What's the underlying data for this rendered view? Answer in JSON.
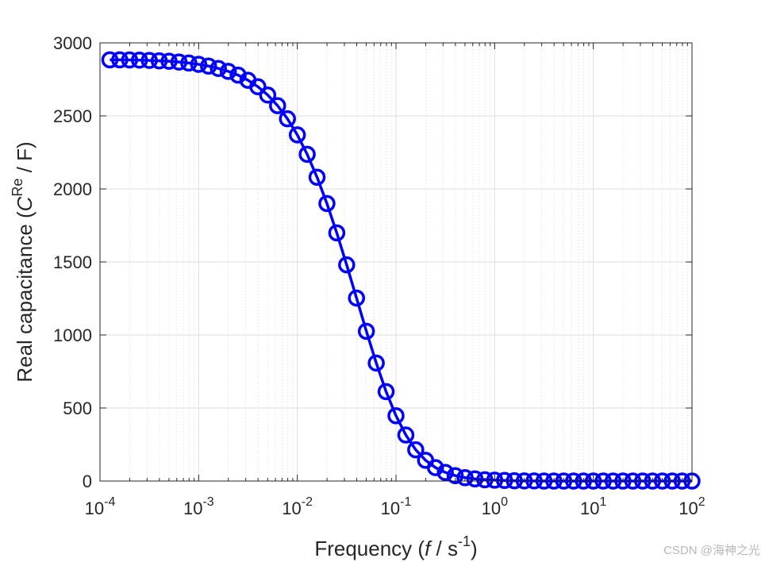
{
  "chart_data": {
    "type": "line",
    "title": "",
    "xlabel": {
      "text_before": "Frequency (",
      "italic": "f",
      "text_mid": " / s",
      "superscript": "-1",
      "text_after": ")"
    },
    "ylabel": {
      "text_before": "Real capacitance (",
      "italic": "C",
      "superscript": "Re",
      "text_after": " / F)"
    },
    "x_scale": "log",
    "xlim": [
      0.0001,
      100
    ],
    "ylim": [
      0,
      3000
    ],
    "x_ticks": [
      {
        "base": "10",
        "exp": "-4",
        "value": 0.0001
      },
      {
        "base": "10",
        "exp": "-3",
        "value": 0.001
      },
      {
        "base": "10",
        "exp": "-2",
        "value": 0.01
      },
      {
        "base": "10",
        "exp": "-1",
        "value": 0.1
      },
      {
        "base": "10",
        "exp": "0",
        "value": 1
      },
      {
        "base": "10",
        "exp": "1",
        "value": 10
      },
      {
        "base": "10",
        "exp": "2",
        "value": 100
      }
    ],
    "y_ticks": [
      0,
      500,
      1000,
      1500,
      2000,
      2500,
      3000
    ],
    "grid": true,
    "minor_grid": true,
    "legend": "none",
    "series": [
      {
        "marker": "circle",
        "line": "solid",
        "color": "#0000ff",
        "points": [
          [
            0.0001259,
            2884
          ],
          [
            0.0001585,
            2884
          ],
          [
            0.0001995,
            2883
          ],
          [
            0.0002512,
            2882
          ],
          [
            0.0003162,
            2880
          ],
          [
            0.0003981,
            2877
          ],
          [
            0.0005012,
            2874
          ],
          [
            0.000631,
            2869
          ],
          [
            0.0007943,
            2862
          ],
          [
            0.001,
            2853
          ],
          [
            0.001259,
            2841
          ],
          [
            0.001585,
            2825
          ],
          [
            0.001995,
            2805
          ],
          [
            0.002512,
            2779
          ],
          [
            0.003162,
            2744
          ],
          [
            0.003981,
            2700
          ],
          [
            0.005012,
            2643
          ],
          [
            0.00631,
            2570
          ],
          [
            0.007943,
            2480
          ],
          [
            0.01,
            2370
          ],
          [
            0.01259,
            2237
          ],
          [
            0.01585,
            2080
          ],
          [
            0.01995,
            1900
          ],
          [
            0.02512,
            1699
          ],
          [
            0.03162,
            1480
          ],
          [
            0.03981,
            1253
          ],
          [
            0.05012,
            1025
          ],
          [
            0.0631,
            808
          ],
          [
            0.07943,
            612
          ],
          [
            0.1,
            447
          ],
          [
            0.1259,
            315
          ],
          [
            0.1585,
            214
          ],
          [
            0.1995,
            142
          ],
          [
            0.2512,
            92
          ],
          [
            0.3162,
            59
          ],
          [
            0.3981,
            37
          ],
          [
            0.5012,
            23
          ],
          [
            0.631,
            15
          ],
          [
            0.7943,
            9
          ],
          [
            1.0,
            6
          ],
          [
            1.259,
            4
          ],
          [
            1.585,
            2
          ],
          [
            1.995,
            1
          ],
          [
            2.512,
            1
          ],
          [
            3.162,
            0
          ],
          [
            3.981,
            0
          ],
          [
            5.012,
            0
          ],
          [
            6.31,
            0
          ],
          [
            7.943,
            0
          ],
          [
            10.0,
            0
          ],
          [
            12.59,
            0
          ],
          [
            15.85,
            0
          ],
          [
            19.95,
            0
          ],
          [
            25.12,
            0
          ],
          [
            31.62,
            0
          ],
          [
            39.81,
            0
          ],
          [
            50.12,
            0
          ],
          [
            63.1,
            0
          ],
          [
            79.43,
            0
          ],
          [
            100.0,
            0
          ]
        ]
      }
    ]
  },
  "watermark": "CSDN @海神之光"
}
